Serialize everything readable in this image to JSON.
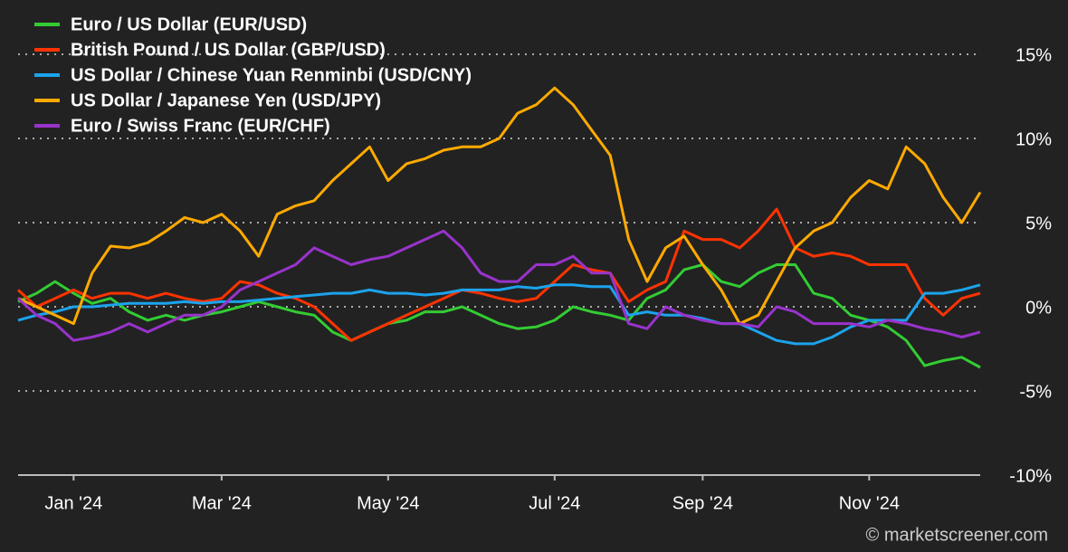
{
  "chart_data": {
    "type": "line",
    "source": "© marketscreener.com",
    "categories": [
      null,
      null,
      null,
      "Jan '24",
      null,
      null,
      null,
      null,
      null,
      null,
      null,
      "Mar '24",
      null,
      null,
      null,
      null,
      null,
      null,
      null,
      null,
      "May '24",
      null,
      null,
      null,
      null,
      null,
      null,
      null,
      null,
      "Jul '24",
      null,
      null,
      null,
      null,
      null,
      null,
      null,
      "Sep '24",
      null,
      null,
      null,
      null,
      null,
      null,
      null,
      null,
      "Nov '24",
      null,
      null,
      null,
      null,
      null,
      null
    ],
    "series": [
      {
        "name": "Euro / US Dollar (EUR/USD)",
        "color": "#33cc33",
        "values": [
          0.3,
          0.8,
          1.5,
          0.8,
          0.2,
          0.5,
          -0.3,
          -0.8,
          -0.5,
          -0.8,
          -0.5,
          -0.3,
          0,
          0.3,
          0,
          -0.3,
          -0.5,
          -1.5,
          -2,
          -1.5,
          -1,
          -0.8,
          -0.3,
          -0.3,
          0,
          -0.5,
          -1,
          -1.3,
          -1.2,
          -0.8,
          0,
          -0.3,
          -0.5,
          -0.8,
          0.5,
          1,
          2.2,
          2.5,
          1.5,
          1.2,
          2,
          2.5,
          2.5,
          0.8,
          0.5,
          -0.5,
          -0.8,
          -1.2,
          -2,
          -3.5,
          -3.2,
          -3,
          -3.6
        ]
      },
      {
        "name": "British Pound / US Dollar (GBP/USD)",
        "color": "#ff3300",
        "values": [
          1,
          0,
          0.5,
          1,
          0.5,
          0.8,
          0.8,
          0.5,
          0.8,
          0.5,
          0.3,
          0.5,
          1.5,
          1.3,
          0.8,
          0.5,
          0,
          -1,
          -2,
          -1.5,
          -1,
          -0.5,
          0,
          0.5,
          1,
          0.8,
          0.5,
          0.3,
          0.5,
          1.5,
          2.5,
          2.2,
          2,
          0.3,
          1,
          1.5,
          4.5,
          4,
          4,
          3.5,
          4.5,
          5.8,
          3.5,
          3,
          3.2,
          3,
          2.5,
          2.5,
          2.5,
          0.5,
          -0.5,
          0.5,
          0.8
        ]
      },
      {
        "name": "US Dollar / Chinese Yuan Renminbi (USD/CNY)",
        "color": "#1ca3ec",
        "values": [
          -0.8,
          -0.5,
          -0.3,
          0,
          0,
          0.1,
          0.2,
          0.2,
          0.2,
          0.3,
          0.2,
          0.3,
          0.3,
          0.4,
          0.5,
          0.6,
          0.7,
          0.8,
          0.8,
          1,
          0.8,
          0.8,
          0.7,
          0.8,
          1,
          1,
          1,
          1.2,
          1.1,
          1.3,
          1.3,
          1.2,
          1.2,
          -0.5,
          -0.3,
          -0.5,
          -0.5,
          -0.7,
          -1,
          -1,
          -1.5,
          -2,
          -2.2,
          -2.2,
          -1.8,
          -1.2,
          -0.8,
          -0.8,
          -0.8,
          0.8,
          0.8,
          1,
          1.3
        ]
      },
      {
        "name": "US Dollar / Japanese Yen (USD/JPY)",
        "color": "#ffaa00",
        "values": [
          0.5,
          0,
          -0.5,
          -1,
          2,
          3.6,
          3.5,
          3.8,
          4.5,
          5.3,
          5,
          5.5,
          4.5,
          3,
          5.5,
          6,
          6.3,
          7.5,
          8.5,
          9.5,
          7.5,
          8.5,
          8.8,
          9.3,
          9.5,
          9.5,
          10,
          11.5,
          12,
          13,
          12,
          10.5,
          9,
          4,
          1.5,
          3.5,
          4.2,
          2.5,
          1,
          -1,
          -0.5,
          1.5,
          3.5,
          4.5,
          5,
          6.5,
          7.5,
          7,
          9.5,
          8.5,
          6.5,
          5,
          6.8
        ]
      },
      {
        "name": "Euro / Swiss Franc (EUR/CHF)",
        "color": "#9933cc",
        "values": [
          0.5,
          -0.5,
          -1,
          -2,
          -1.8,
          -1.5,
          -1,
          -1.5,
          -1,
          -0.5,
          -0.5,
          0,
          1,
          1.5,
          2,
          2.5,
          3.5,
          3,
          2.5,
          2.8,
          3,
          3.5,
          4,
          4.5,
          3.5,
          2,
          1.5,
          1.5,
          2.5,
          2.5,
          3,
          2,
          2,
          -1,
          -1.3,
          0,
          -0.5,
          -0.8,
          -1,
          -1,
          -1.2,
          0,
          -0.3,
          -1,
          -1,
          -1,
          -1.2,
          -0.8,
          -1,
          -1.3,
          -1.5,
          -1.8,
          -1.5
        ]
      }
    ],
    "ylim": [
      -10,
      17
    ],
    "yticks": [
      {
        "value": -10,
        "label": "-10%"
      },
      {
        "value": -5,
        "label": "-5%"
      },
      {
        "value": 0,
        "label": "0%"
      },
      {
        "value": 5,
        "label": "5%"
      },
      {
        "value": 10,
        "label": "10%"
      },
      {
        "value": 15,
        "label": "15%"
      }
    ],
    "grid": true
  }
}
